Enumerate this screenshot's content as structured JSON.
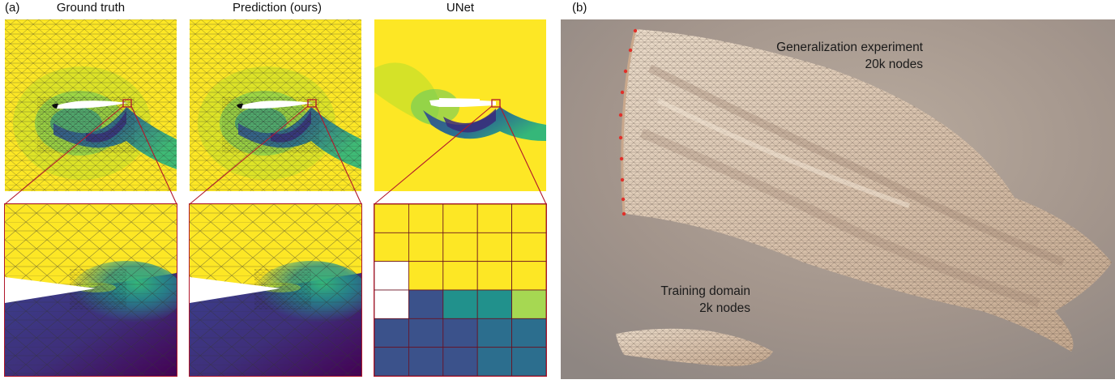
{
  "panel_a": {
    "tag": "(a)",
    "columns": [
      {
        "title": "Ground truth"
      },
      {
        "title": "Prediction (ours)"
      },
      {
        "title": "UNet"
      }
    ]
  },
  "panel_b": {
    "tag": "(b)",
    "large_cloth": {
      "line1": "Generalization experiment",
      "line2": "20k nodes"
    },
    "small_cloth": {
      "line1": "Training domain",
      "line2": "2k nodes"
    }
  },
  "colors": {
    "viridis_yellow": "#fde725",
    "viridis_green": "#6ece58",
    "viridis_teal": "#21918c",
    "viridis_blue": "#3b528b",
    "viridis_purple": "#440154",
    "zoom_box": "#b2182b",
    "cloth": "#e2cdb8",
    "backdrop": "#a89a90"
  },
  "unet_zoom_grid": [
    [
      "yellow",
      "yellow",
      "yellow",
      "yellow",
      "yellow"
    ],
    [
      "yellow",
      "yellow",
      "yellow",
      "yellow",
      "yellow"
    ],
    [
      "white",
      "yellow",
      "yellow",
      "yellow",
      "yellow"
    ],
    [
      "white",
      "blue",
      "teal",
      "teal",
      "green"
    ],
    [
      "blue",
      "blue",
      "blue",
      "steel",
      "steel"
    ],
    [
      "blue",
      "blue",
      "blue",
      "steel",
      "steel"
    ]
  ]
}
